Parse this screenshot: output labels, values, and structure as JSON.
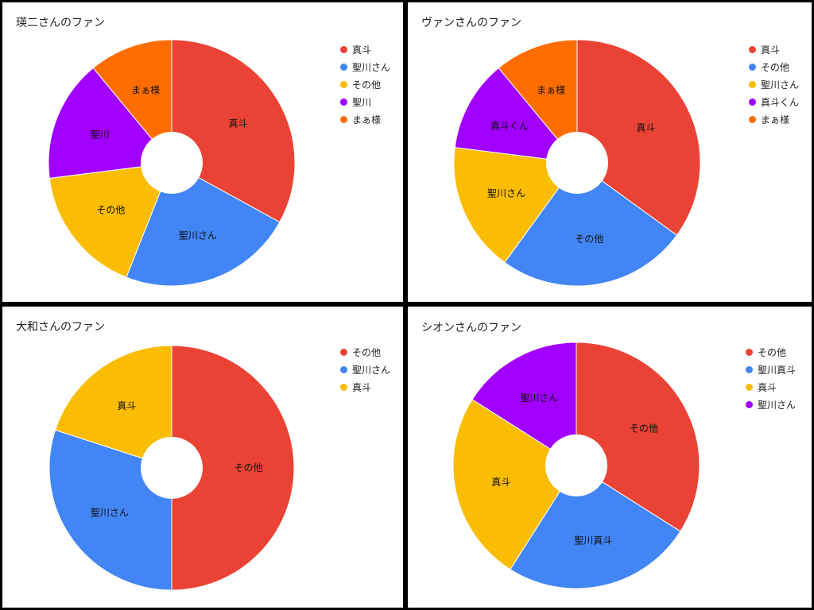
{
  "chart_data": [
    {
      "type": "pie",
      "title": "瑛二さんのファン",
      "legend_position": "right",
      "hole": "donut",
      "labels": [
        "真斗",
        "聖川さん",
        "その他",
        "聖川",
        "まぁ様"
      ],
      "values": [
        33,
        23,
        17,
        16,
        11
      ],
      "colors": [
        "#ea4335",
        "#4285f4",
        "#fbbc04",
        "#a100ff",
        "#ff6d01"
      ]
    },
    {
      "type": "pie",
      "title": "ヴァンさんのファン",
      "legend_position": "right",
      "hole": "donut",
      "labels": [
        "真斗",
        "その他",
        "聖川さん",
        "真斗くん",
        "まぁ様"
      ],
      "values": [
        35,
        25,
        17,
        12,
        11
      ],
      "colors": [
        "#ea4335",
        "#4285f4",
        "#fbbc04",
        "#a100ff",
        "#ff6d01"
      ]
    },
    {
      "type": "pie",
      "title": "大和さんのファン",
      "legend_position": "right",
      "hole": "donut",
      "labels": [
        "その他",
        "聖川さん",
        "真斗"
      ],
      "values": [
        50,
        30,
        20
      ],
      "colors": [
        "#ea4335",
        "#4285f4",
        "#fbbc04"
      ]
    },
    {
      "type": "pie",
      "title": "シオンさんのファン",
      "legend_position": "right",
      "hole": "donut",
      "labels": [
        "その他",
        "聖川真斗",
        "真斗",
        "聖川さん"
      ],
      "values": [
        34,
        25,
        25,
        16
      ],
      "colors": [
        "#ea4335",
        "#4285f4",
        "#fbbc04",
        "#a100ff"
      ]
    }
  ]
}
